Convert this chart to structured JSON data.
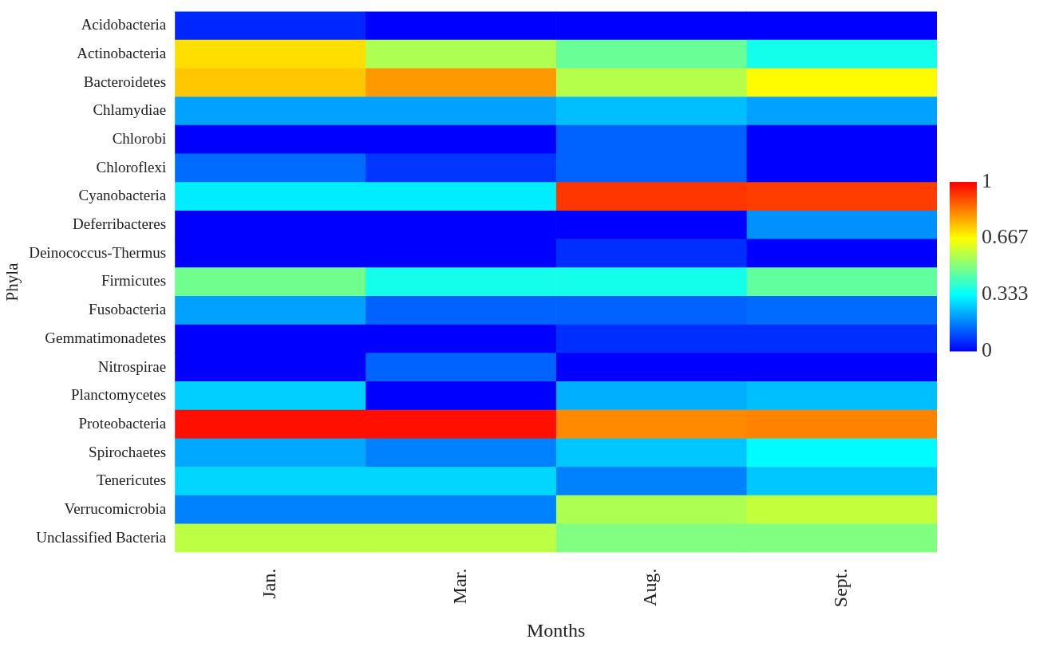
{
  "chart_data": {
    "type": "heatmap",
    "xlabel": "Months",
    "ylabel": "Phyla",
    "categories": [
      "Jan.",
      "Mar.",
      "Aug.",
      "Sept."
    ],
    "y_categories": [
      "Acidobacteria",
      "Actinobacteria",
      "Bacteroidetes",
      "Chlamydiae",
      "Chlorobi",
      "Chloroflexi",
      "Cyanobacteria",
      "Deferribacteres",
      "Deinococcus-Thermus",
      "Firmicutes",
      "Fusobacteria",
      "Gemmatimonadetes",
      "Nitrospirae",
      "Planctomycetes",
      "Proteobacteria",
      "Spirochaetes",
      "Tenericutes",
      "Verrucomicrobia",
      "Unclassified Bacteria"
    ],
    "cells": [
      [
        0.05,
        0,
        0,
        0
      ],
      [
        0.71,
        0.56,
        0.47,
        0.36
      ],
      [
        0.74,
        0.8,
        0.57,
        0.67
      ],
      [
        0.21,
        0.21,
        0.25,
        0.21
      ],
      [
        0,
        0,
        0.13,
        0
      ],
      [
        0.14,
        0.07,
        0.13,
        0
      ],
      [
        0.31,
        0.31,
        0.93,
        0.92
      ],
      [
        0,
        0,
        0,
        0.19
      ],
      [
        0,
        0,
        0.06,
        0
      ],
      [
        0.48,
        0.36,
        0.36,
        0.46
      ],
      [
        0.21,
        0.13,
        0.13,
        0.14
      ],
      [
        0,
        0,
        0.06,
        0.06
      ],
      [
        0,
        0.13,
        0,
        0
      ],
      [
        0.27,
        0,
        0.23,
        0.25
      ],
      [
        0.98,
        0.98,
        0.82,
        0.83
      ],
      [
        0.22,
        0.17,
        0.26,
        0.33
      ],
      [
        0.28,
        0.28,
        0.17,
        0.26
      ],
      [
        0.17,
        0.17,
        0.56,
        0.59
      ],
      [
        0.58,
        0.58,
        0.5,
        0.5
      ]
    ],
    "clim": [
      0,
      1
    ],
    "cticks": [
      0,
      {
        "value": 0.333,
        "label": "0.333"
      },
      {
        "value": 0.667,
        "label": "0.667"
      },
      1
    ]
  }
}
